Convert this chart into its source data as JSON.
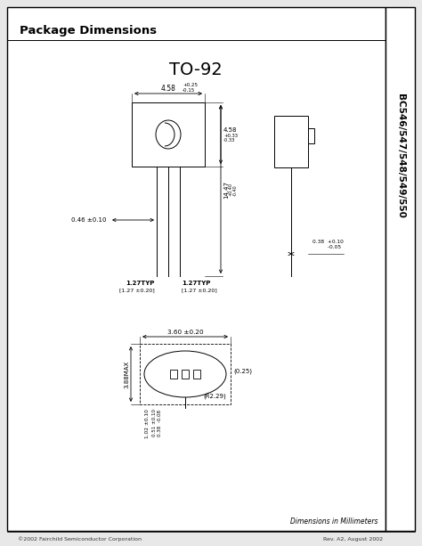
{
  "title": "Package Dimensions",
  "subtitle": "TO-92",
  "side_label": "BC546/547/548/549/550",
  "bg_color": "#f5f5f5",
  "border_color": "#000000",
  "line_color": "#000000",
  "footer_left": "©2002 Fairchild Semiconductor Corporation",
  "footer_right": "Rev. A2, August 2002",
  "bottom_right": "Dimensions in Millimeters"
}
